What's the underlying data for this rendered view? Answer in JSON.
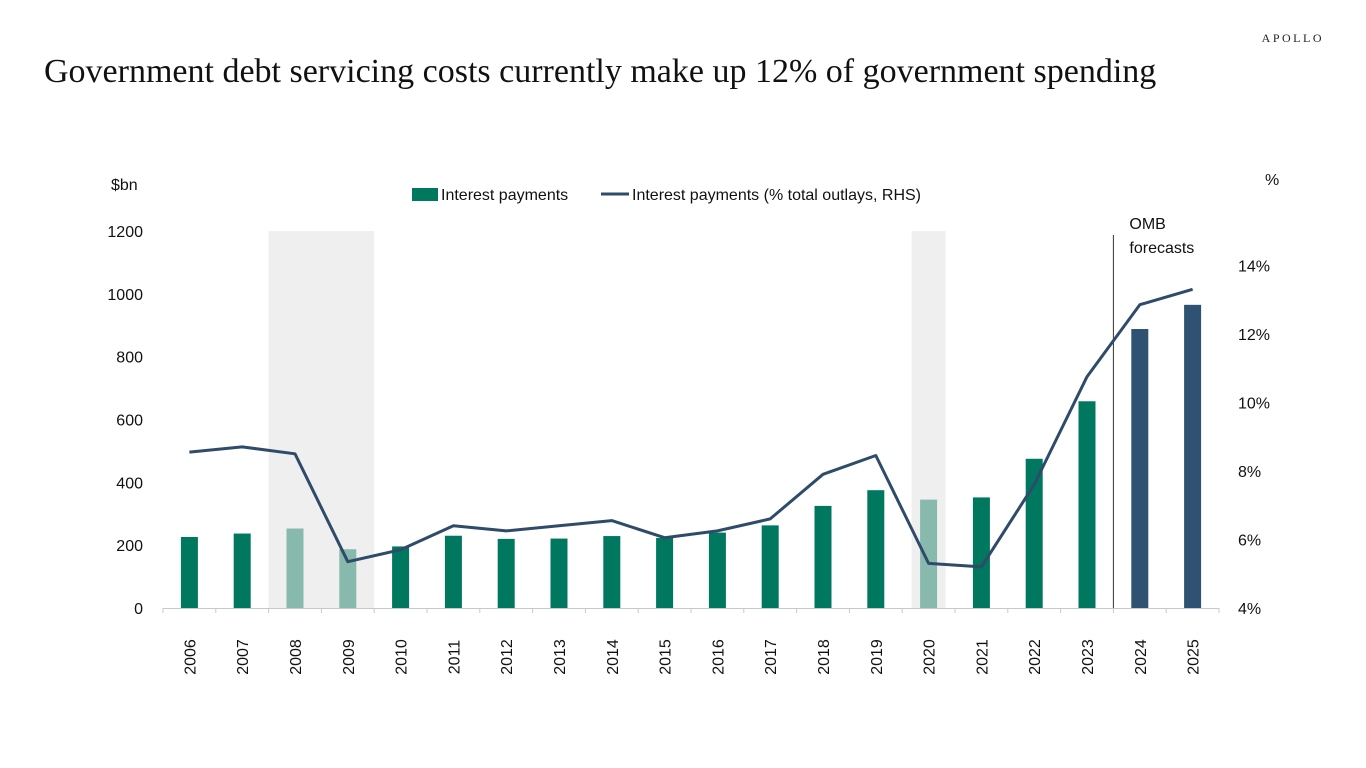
{
  "brand": "APOLLO",
  "title": "Government debt servicing costs currently make up 12% of government spending",
  "chart_data": {
    "type": "bar",
    "title": "Government debt servicing costs currently make up 12% of government spending",
    "categories": [
      "2006",
      "2007",
      "2008",
      "2009",
      "2010",
      "2011",
      "2012",
      "2013",
      "2014",
      "2015",
      "2016",
      "2017",
      "2018",
      "2019",
      "2020",
      "2021",
      "2022",
      "2023",
      "2024",
      "2025"
    ],
    "series": [
      {
        "name": "Interest payments",
        "type": "bar",
        "axis": "left",
        "values": [
          226,
          237,
          253,
          187,
          196,
          230,
          220,
          221,
          229,
          223,
          240,
          263,
          325,
          375,
          345,
          352,
          475,
          658,
          888,
          965
        ],
        "colors_by_point": [
          "#00775f",
          "#00775f",
          "#88b9ad",
          "#88b9ad",
          "#00775f",
          "#00775f",
          "#00775f",
          "#00775f",
          "#00775f",
          "#00775f",
          "#00775f",
          "#00775f",
          "#00775f",
          "#00775f",
          "#88b9ad",
          "#00775f",
          "#00775f",
          "#00775f",
          "#2f5273",
          "#2f5273"
        ]
      },
      {
        "name": "Interest payments (% total outlays, RHS)",
        "type": "line",
        "axis": "right",
        "values": [
          8.55,
          8.7,
          8.5,
          5.35,
          5.7,
          6.4,
          6.25,
          6.4,
          6.55,
          6.05,
          6.25,
          6.6,
          7.9,
          8.45,
          5.3,
          5.2,
          7.6,
          10.75,
          12.85,
          13.3
        ]
      }
    ],
    "y_left": {
      "label": "$bn",
      "min": 0,
      "max": 1200,
      "ticks": [
        "0",
        "200",
        "400",
        "600",
        "800",
        "1000",
        "1200"
      ]
    },
    "y_right": {
      "label": "%",
      "min": 4,
      "max": 15,
      "ticks": [
        "4%",
        "6%",
        "8%",
        "10%",
        "12%",
        "14%"
      ],
      "tick_values": [
        4,
        6,
        8,
        10,
        12,
        14
      ]
    },
    "recession_shading": [
      [
        "2008",
        "2009"
      ],
      [
        "2020",
        "2020"
      ]
    ],
    "forecast_divider": {
      "after": "2023",
      "label_line1": "OMB",
      "label_line2": "forecasts"
    },
    "legend_position": "top-center",
    "colors": {
      "bar": "#00775f",
      "bar_recession": "#88b9ad",
      "bar_forecast": "#2f5273",
      "line": "#2f4b6a",
      "shade": "#efefef"
    }
  }
}
